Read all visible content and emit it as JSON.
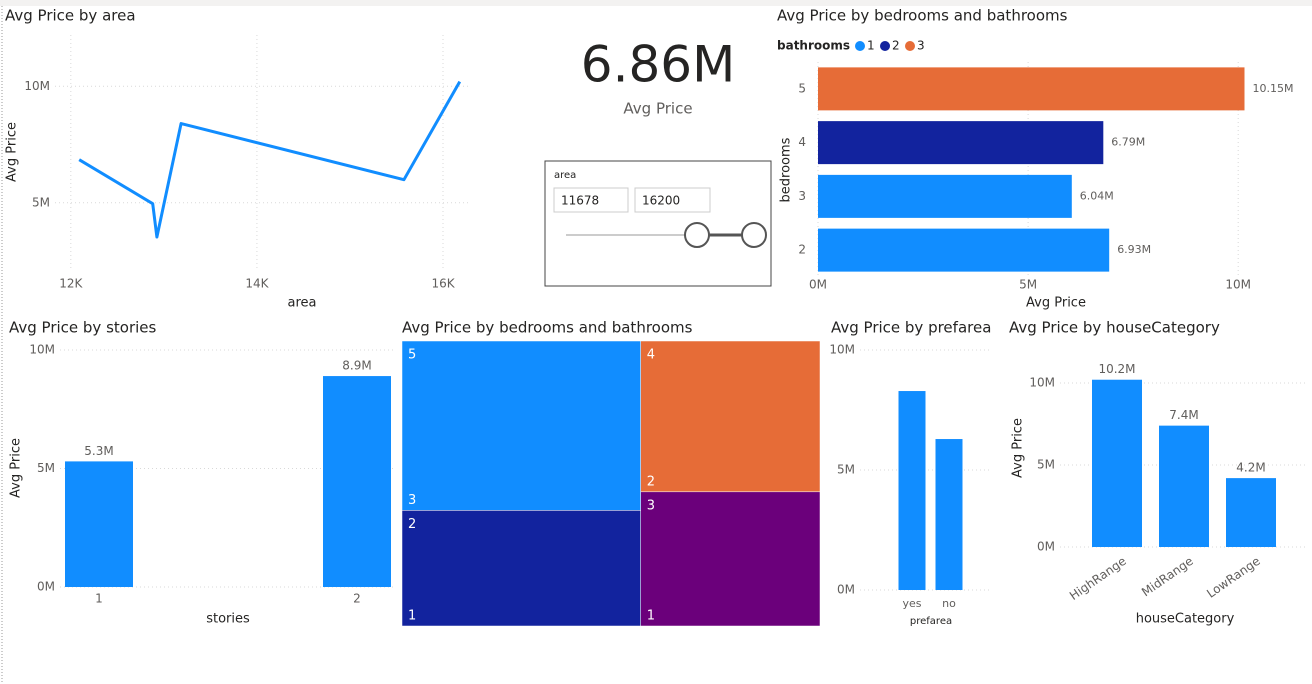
{
  "chart_data": [
    {
      "type": "line",
      "title": "Avg Price by area",
      "x_label": "area",
      "y_label": "Avg Price",
      "x": [
        12090,
        12880,
        12925,
        13185,
        15580,
        16180
      ],
      "values": [
        6.85,
        4.96,
        3.53,
        8.4,
        5.99,
        10.2
      ],
      "color": "#118dff",
      "xlim": [
        11830,
        16290
      ],
      "ylim": [
        2.2,
        12.2
      ],
      "xticks": [
        {
          "value": 12000,
          "label": "12K"
        },
        {
          "value": 14000,
          "label": "14K"
        },
        {
          "value": 16000,
          "label": "16K"
        }
      ],
      "yticks": [
        {
          "value": 5,
          "label": "5M"
        },
        {
          "value": 10,
          "label": "10M"
        }
      ],
      "grid": true
    },
    {
      "type": "bar",
      "orientation": "horizontal",
      "title": "Avg Price by bedrooms and bathrooms",
      "legend_title": "bathrooms",
      "x_label": "Avg Price",
      "y_label": "bedrooms",
      "categories": [
        "5",
        "4",
        "3",
        "2"
      ],
      "series": [
        {
          "name": "1",
          "color": "#118dff",
          "values": [
            null,
            null,
            6.04,
            6.93
          ],
          "value_labels": [
            null,
            null,
            "6.04M",
            "6.93M"
          ]
        },
        {
          "name": "2",
          "color": "#12239e",
          "values": [
            null,
            6.79,
            null,
            null
          ],
          "value_labels": [
            null,
            "6.79M",
            null,
            null
          ]
        },
        {
          "name": "3",
          "color": "#e66c37",
          "values": [
            10.15,
            null,
            null,
            null
          ],
          "value_labels": [
            "10.15M",
            null,
            null,
            null
          ]
        }
      ],
      "xlim": [
        0,
        10.4
      ],
      "xticks": [
        {
          "value": 0,
          "label": "0M"
        },
        {
          "value": 5,
          "label": "5M"
        },
        {
          "value": 10,
          "label": "10M"
        }
      ],
      "grid": true
    },
    {
      "type": "bar",
      "title": "Avg Price by stories",
      "x_label": "stories",
      "y_label": "Avg Price",
      "categories": [
        "1",
        "2"
      ],
      "values": [
        5.3,
        8.9
      ],
      "value_labels": [
        "5.3M",
        "8.9M"
      ],
      "color": "#118dff",
      "ylim": [
        0,
        10
      ],
      "yticks": [
        {
          "value": 0,
          "label": "0M"
        },
        {
          "value": 5,
          "label": "5M"
        },
        {
          "value": 10,
          "label": "10M"
        }
      ],
      "grid": true
    },
    {
      "type": "treemap",
      "title": "Avg Price by bedrooms and bathrooms",
      "nodes": [
        {
          "bedrooms": "5",
          "bathrooms": "3",
          "value": 10.15,
          "color": "#118dff"
        },
        {
          "bedrooms": "2",
          "bathrooms": "1",
          "value": 6.93,
          "color": "#12239e"
        },
        {
          "bedrooms": "4",
          "bathrooms": "2",
          "value": 6.79,
          "color": "#e66c37"
        },
        {
          "bedrooms": "3",
          "bathrooms": "1",
          "value": 6.04,
          "color": "#6b007b"
        }
      ]
    },
    {
      "type": "bar",
      "title": "Avg Price by prefarea",
      "x_label": "prefarea",
      "categories": [
        "yes",
        "no"
      ],
      "values": [
        8.29,
        6.29
      ],
      "color": "#118dff",
      "ylim": [
        0,
        10
      ],
      "yticks": [
        {
          "value": 0,
          "label": "0M"
        },
        {
          "value": 5,
          "label": "5M"
        },
        {
          "value": 10,
          "label": "10M"
        }
      ],
      "grid": true
    },
    {
      "type": "bar",
      "title": "Avg Price by houseCategory",
      "x_label": "houseCategory",
      "y_label": "Avg Price",
      "categories": [
        "HighRange",
        "MidRange",
        "LowRange"
      ],
      "values": [
        10.2,
        7.4,
        4.2
      ],
      "value_labels": [
        "10.2M",
        "7.4M",
        "4.2M"
      ],
      "color": "#118dff",
      "ylim": [
        0,
        10
      ],
      "yticks": [
        {
          "value": 0,
          "label": "0M"
        },
        {
          "value": 5,
          "label": "5M"
        },
        {
          "value": 10,
          "label": "10M"
        }
      ],
      "grid": true,
      "rotate_labels": true
    }
  ],
  "card": {
    "value": "6.86M",
    "label": "Avg Price"
  },
  "slicer": {
    "title": "area",
    "range": [
      11678,
      16200
    ]
  }
}
